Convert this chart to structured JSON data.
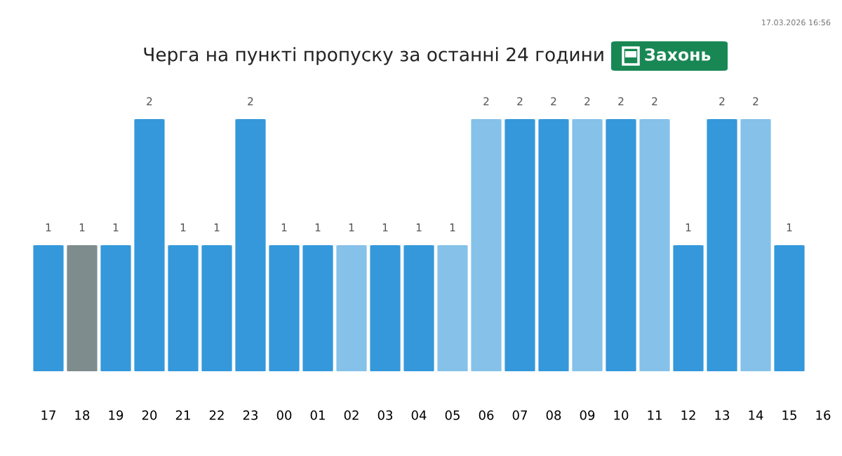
{
  "chart_data": {
    "type": "bar",
    "title": "Черга на пункті пропуску за останні 24 години",
    "subtitle": "Захонь",
    "annotations": [
      "17.03.2026 16:56"
    ],
    "categories": [
      "17",
      "18",
      "19",
      "20",
      "21",
      "22",
      "23",
      "00",
      "01",
      "02",
      "03",
      "04",
      "05",
      "06",
      "07",
      "08",
      "09",
      "10",
      "11",
      "12",
      "13",
      "14",
      "15",
      "16"
    ],
    "values": [
      1,
      1,
      1,
      2,
      1,
      1,
      2,
      1,
      1,
      1,
      1,
      1,
      1,
      2,
      2,
      2,
      2,
      2,
      2,
      1,
      2,
      2,
      1,
      null
    ],
    "colors": [
      "#3498db",
      "#7f8c8d",
      "#3498db",
      "#3498db",
      "#3498db",
      "#3498db",
      "#3498db",
      "#3498db",
      "#3498db",
      "#85c1e9",
      "#3498db",
      "#3498db",
      "#85c1e9",
      "#85c1e9",
      "#3498db",
      "#3498db",
      "#85c1e9",
      "#3498db",
      "#85c1e9",
      "#3498db",
      "#3498db",
      "#85c1e9",
      "#3498db",
      "#3498db"
    ],
    "data_labels": true
  }
}
